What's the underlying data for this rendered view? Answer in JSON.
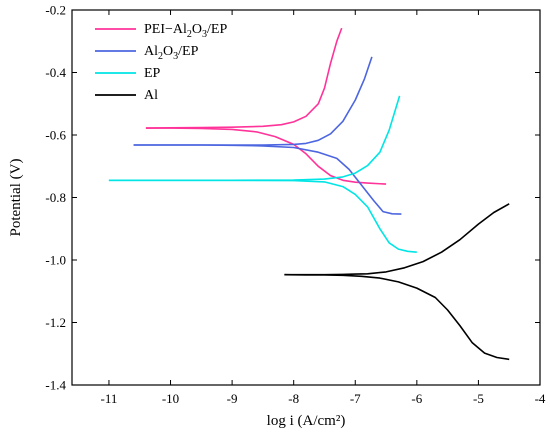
{
  "chart_data": {
    "type": "line",
    "xlabel": "log i (A/cm²)",
    "ylabel": "Potential (V)",
    "xlim": [
      -11.6,
      -4
    ],
    "ylim": [
      -1.4,
      -0.2
    ],
    "x_ticks": [
      -11,
      -10,
      -9,
      -8,
      -7,
      -6,
      -5,
      -4
    ],
    "y_ticks": [
      -0.2,
      -0.4,
      -0.6,
      -0.8,
      -1.0,
      -1.2,
      -1.4
    ],
    "x_tick_labels": [
      "-11",
      "-10",
      "-9",
      "-8",
      "-7",
      "-6",
      "-5",
      "-4"
    ],
    "y_tick_labels": [
      "-0.2",
      "-0.4",
      "-0.6",
      "-0.8",
      "-1.0",
      "-1.2",
      "-1.4"
    ],
    "legend_position": "top-left",
    "grid": false,
    "series": [
      {
        "name": "PEI−Al2O3/EP",
        "legend": {
          "prefix": "PEI−Al",
          "sub1": "2",
          "mid": "O",
          "sub2": "3",
          "suffix": "/EP"
        },
        "color": "#ff3399",
        "branches": [
          [
            [
              -10.4,
              -0.578
            ],
            [
              -10.0,
              -0.577
            ],
            [
              -9.5,
              -0.576
            ],
            [
              -9.0,
              -0.575
            ],
            [
              -8.5,
              -0.572
            ],
            [
              -8.2,
              -0.567
            ],
            [
              -8.0,
              -0.558
            ],
            [
              -7.8,
              -0.54
            ],
            [
              -7.6,
              -0.5
            ],
            [
              -7.5,
              -0.45
            ],
            [
              -7.4,
              -0.37
            ],
            [
              -7.3,
              -0.3
            ],
            [
              -7.22,
              -0.258
            ]
          ],
          [
            [
              -10.4,
              -0.578
            ],
            [
              -10.0,
              -0.578
            ],
            [
              -9.5,
              -0.579
            ],
            [
              -9.0,
              -0.582
            ],
            [
              -8.6,
              -0.59
            ],
            [
              -8.3,
              -0.605
            ],
            [
              -8.0,
              -0.63
            ],
            [
              -7.8,
              -0.66
            ],
            [
              -7.6,
              -0.7
            ],
            [
              -7.4,
              -0.73
            ],
            [
              -7.2,
              -0.745
            ],
            [
              -7.0,
              -0.751
            ],
            [
              -6.8,
              -0.754
            ],
            [
              -6.5,
              -0.757
            ]
          ]
        ]
      },
      {
        "name": "Al2O3/EP",
        "legend": {
          "prefix": "Al",
          "sub1": "2",
          "mid": "O",
          "sub2": "3",
          "suffix": "/EP"
        },
        "color": "#4d66e0",
        "branches": [
          [
            [
              -10.6,
              -0.632
            ],
            [
              -10.0,
              -0.632
            ],
            [
              -9.5,
              -0.632
            ],
            [
              -9.0,
              -0.632
            ],
            [
              -8.5,
              -0.632
            ],
            [
              -8.0,
              -0.63
            ],
            [
              -7.8,
              -0.627
            ],
            [
              -7.6,
              -0.617
            ],
            [
              -7.4,
              -0.596
            ],
            [
              -7.2,
              -0.556
            ],
            [
              -7.0,
              -0.488
            ],
            [
              -6.85,
              -0.42
            ],
            [
              -6.73,
              -0.35
            ]
          ],
          [
            [
              -10.6,
              -0.632
            ],
            [
              -10.0,
              -0.632
            ],
            [
              -9.5,
              -0.632
            ],
            [
              -9.0,
              -0.633
            ],
            [
              -8.5,
              -0.635
            ],
            [
              -8.0,
              -0.64
            ],
            [
              -7.6,
              -0.655
            ],
            [
              -7.3,
              -0.675
            ],
            [
              -7.1,
              -0.71
            ],
            [
              -6.9,
              -0.76
            ],
            [
              -6.7,
              -0.81
            ],
            [
              -6.55,
              -0.845
            ],
            [
              -6.4,
              -0.852
            ],
            [
              -6.25,
              -0.853
            ]
          ]
        ]
      },
      {
        "name": "EP",
        "legend": {
          "prefix": "EP",
          "sub1": "",
          "mid": "",
          "sub2": "",
          "suffix": ""
        },
        "color": "#00e5e5",
        "branches": [
          [
            [
              -11.0,
              -0.745
            ],
            [
              -10.0,
              -0.745
            ],
            [
              -9.0,
              -0.745
            ],
            [
              -8.0,
              -0.744
            ],
            [
              -7.5,
              -0.741
            ],
            [
              -7.2,
              -0.734
            ],
            [
              -7.0,
              -0.722
            ],
            [
              -6.8,
              -0.698
            ],
            [
              -6.6,
              -0.655
            ],
            [
              -6.45,
              -0.585
            ],
            [
              -6.35,
              -0.52
            ],
            [
              -6.28,
              -0.475
            ]
          ],
          [
            [
              -11.0,
              -0.745
            ],
            [
              -10.0,
              -0.745
            ],
            [
              -9.0,
              -0.745
            ],
            [
              -8.0,
              -0.746
            ],
            [
              -7.5,
              -0.75
            ],
            [
              -7.2,
              -0.765
            ],
            [
              -7.0,
              -0.79
            ],
            [
              -6.8,
              -0.83
            ],
            [
              -6.6,
              -0.9
            ],
            [
              -6.45,
              -0.945
            ],
            [
              -6.3,
              -0.965
            ],
            [
              -6.15,
              -0.972
            ],
            [
              -6.0,
              -0.975
            ]
          ]
        ]
      },
      {
        "name": "Al",
        "legend": {
          "prefix": "Al",
          "sub1": "",
          "mid": "",
          "sub2": "",
          "suffix": ""
        },
        "color": "#000000",
        "branches": [
          [
            [
              -8.15,
              -1.047
            ],
            [
              -7.8,
              -1.047
            ],
            [
              -7.5,
              -1.047
            ],
            [
              -7.2,
              -1.046
            ],
            [
              -7.0,
              -1.045
            ],
            [
              -6.8,
              -1.044
            ],
            [
              -6.5,
              -1.038
            ],
            [
              -6.2,
              -1.025
            ],
            [
              -5.9,
              -1.005
            ],
            [
              -5.6,
              -0.975
            ],
            [
              -5.3,
              -0.935
            ],
            [
              -5.0,
              -0.885
            ],
            [
              -4.75,
              -0.848
            ],
            [
              -4.5,
              -0.82
            ]
          ],
          [
            [
              -8.15,
              -1.047
            ],
            [
              -7.8,
              -1.048
            ],
            [
              -7.5,
              -1.048
            ],
            [
              -7.2,
              -1.049
            ],
            [
              -6.9,
              -1.052
            ],
            [
              -6.6,
              -1.058
            ],
            [
              -6.3,
              -1.07
            ],
            [
              -6.0,
              -1.09
            ],
            [
              -5.7,
              -1.12
            ],
            [
              -5.5,
              -1.16
            ],
            [
              -5.3,
              -1.21
            ],
            [
              -5.1,
              -1.265
            ],
            [
              -4.9,
              -1.298
            ],
            [
              -4.7,
              -1.312
            ],
            [
              -4.5,
              -1.318
            ]
          ]
        ]
      }
    ]
  }
}
